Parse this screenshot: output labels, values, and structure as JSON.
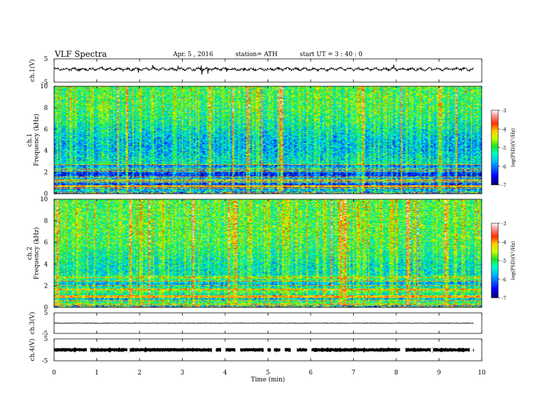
{
  "header": {
    "title": "VLF  Spectra",
    "date": "Apr. 5  , 2016",
    "station": "station= ATH",
    "start": "start  UT  =    3  : 40 : 0"
  },
  "chart_data": [
    {
      "type": "line",
      "ylabel": "ch.1(V)",
      "ylim": [
        -5,
        5
      ],
      "yticks": [
        "5",
        "-5"
      ],
      "xlim": [
        0,
        10
      ]
    },
    {
      "type": "heatmap",
      "ylabel": "ch.1",
      "ylabel2": "Frequency  (kHz)",
      "ylim": [
        0,
        10
      ],
      "yticks": [
        "0",
        "2",
        "4",
        "6",
        "8",
        "10"
      ],
      "xlim": [
        0,
        10
      ],
      "colorbar": {
        "label": "log(PSD)(V²/Hz)",
        "range": [
          -7,
          -3
        ],
        "ticks": [
          "-3",
          "-4",
          "-5",
          "-6",
          "-7"
        ]
      }
    },
    {
      "type": "heatmap",
      "ylabel": "ch.2",
      "ylabel2": "Frequency  (kHz)",
      "ylim": [
        0,
        10
      ],
      "yticks": [
        "0",
        "2",
        "4",
        "6",
        "8",
        "10"
      ],
      "xlim": [
        0,
        10
      ],
      "colorbar": {
        "label": "log(PSD)(V²/Hz)",
        "range": [
          -7,
          -3
        ],
        "ticks": [
          "-3",
          "-4",
          "-5",
          "-6",
          "-7"
        ]
      }
    },
    {
      "type": "line",
      "ylabel": "ch.3(V)",
      "ylim": [
        -5,
        5
      ],
      "yticks": [
        "5",
        "-5"
      ],
      "xlim": [
        0,
        10
      ]
    },
    {
      "type": "line",
      "ylabel": "ch.4(V)",
      "ylim": [
        -5,
        5
      ],
      "yticks": [
        "5",
        "-5"
      ],
      "xlim": [
        0,
        10
      ],
      "xlabel": "Time  (min)",
      "xticks": [
        "0",
        "1",
        "2",
        "3",
        "4",
        "5",
        "6",
        "7",
        "8",
        "9",
        "10"
      ]
    }
  ]
}
